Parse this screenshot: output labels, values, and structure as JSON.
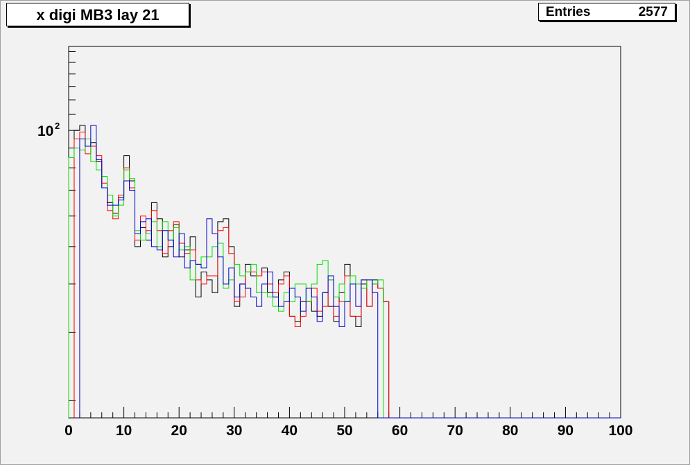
{
  "title": "x digi MB3 lay 21",
  "stats": {
    "label": "Entries",
    "value": "2577"
  },
  "chart_data": {
    "type": "line",
    "drawstyle": "step-histogram",
    "title": "x digi MB3 lay 21",
    "xlabel": "",
    "ylabel": "",
    "xlim": [
      0,
      100
    ],
    "ylim": [
      18,
      165
    ],
    "yscale": "log",
    "grid": false,
    "bin_width": 1,
    "x_ticks": [
      "0",
      "10",
      "20",
      "30",
      "40",
      "50",
      "60",
      "70",
      "80",
      "90",
      "100"
    ],
    "y_tick_label": {
      "base": "10",
      "exponent": "2",
      "value": 100
    },
    "series": [
      {
        "color": "#000000",
        "x_start": 1,
        "values": [
          100,
          103,
          91,
          93,
          83,
          71,
          65,
          61,
          67,
          86,
          74,
          50,
          56,
          52,
          65,
          59,
          47,
          50,
          57,
          47,
          49,
          53,
          37,
          43,
          41,
          38,
          58,
          59,
          50,
          35,
          40,
          45,
          42,
          42,
          44,
          38,
          37,
          41,
          43,
          33,
          32,
          36,
          36,
          34,
          33,
          38,
          35,
          32,
          38,
          45,
          33,
          31,
          40,
          35,
          41,
          39,
          36
        ]
      },
      {
        "color": "#ff0000",
        "x_start": 1,
        "values": [
          95,
          99,
          87,
          91,
          86,
          73,
          62,
          59,
          68,
          80,
          71,
          52,
          60,
          55,
          62,
          55,
          48,
          55,
          58,
          51,
          48,
          49,
          41,
          40,
          42,
          42,
          55,
          56,
          48,
          36,
          37,
          43,
          43,
          42,
          43,
          40,
          38,
          40,
          42,
          33,
          31,
          33,
          36,
          39,
          34,
          35,
          41,
          33,
          36,
          42,
          33,
          33,
          41,
          35,
          40,
          39,
          36
        ]
      },
      {
        "color": "#00dd00",
        "x_start": 0,
        "values": [
          85,
          90,
          89,
          95,
          83,
          79,
          76,
          68,
          60,
          64,
          79,
          75,
          55,
          52,
          54,
          58,
          50,
          58,
          52,
          56,
          49,
          50,
          41,
          45,
          47,
          47,
          50,
          51,
          39,
          41,
          45,
          42,
          43,
          45,
          38,
          38,
          37,
          35,
          34,
          38,
          36,
          40,
          40,
          36,
          40,
          45,
          46,
          41,
          37,
          40,
          36,
          42,
          40,
          39,
          41,
          40,
          41
        ]
      },
      {
        "color": "#0000cc",
        "x_start": 2,
        "values": [
          95,
          91,
          103,
          84,
          71,
          64,
          64,
          66,
          74,
          70,
          54,
          58,
          59,
          50,
          49,
          55,
          52,
          47,
          54,
          44,
          46,
          45,
          44,
          59,
          54,
          47,
          40,
          44,
          37,
          40,
          39,
          37,
          35,
          40,
          43,
          37,
          35,
          36,
          39,
          37,
          34,
          39,
          37,
          32,
          38,
          42,
          35,
          31,
          36,
          40,
          35,
          41,
          41,
          38
        ]
      }
    ]
  }
}
